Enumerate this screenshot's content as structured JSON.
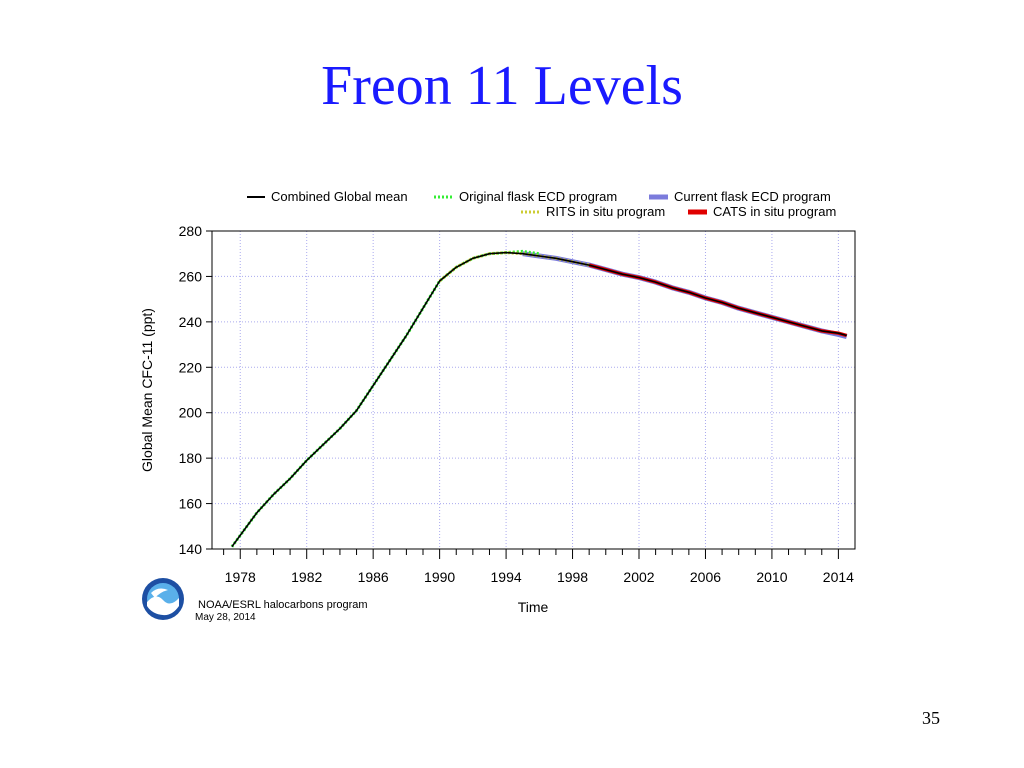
{
  "slide": {
    "title": "Freon 11 Levels",
    "page_number": "35"
  },
  "credits": {
    "logo_text": "NOAA",
    "program": "NOAA/ESRL halocarbons program",
    "date": "May 28, 2014"
  },
  "colors": {
    "title": "#1a1aff",
    "combined": "#000000",
    "original_flask": "#33ee33",
    "current_flask": "#7b7bdc",
    "rits": "#cccc33",
    "cats": "#e00000",
    "grid": "#aaaaee"
  },
  "chart_data": {
    "type": "line",
    "title": "",
    "xlabel": "Time",
    "ylabel": "Global Mean CFC-11  (ppt)",
    "xlim": [
      1976.3,
      2015
    ],
    "ylim": [
      140,
      280
    ],
    "x_ticks": [
      1978,
      1982,
      1986,
      1990,
      1994,
      1998,
      2002,
      2006,
      2010,
      2014
    ],
    "y_ticks": [
      140,
      160,
      180,
      200,
      220,
      240,
      260,
      280
    ],
    "grid": true,
    "legend_position": "top",
    "series": [
      {
        "name": "Combined Global mean",
        "style": "solid-thin",
        "x": [
          1977.5,
          1978,
          1979,
          1980,
          1981,
          1982,
          1983,
          1984,
          1985,
          1986,
          1987,
          1988,
          1989,
          1990,
          1991,
          1992,
          1993,
          1994,
          1995,
          1996,
          1997,
          1998,
          1999,
          2000,
          2001,
          2002,
          2003,
          2004,
          2005,
          2006,
          2007,
          2008,
          2009,
          2010,
          2011,
          2012,
          2013,
          2014,
          2014.5
        ],
        "y": [
          141,
          146,
          156,
          164,
          171,
          179,
          186,
          193,
          201,
          212,
          223,
          234,
          246,
          258,
          264,
          268,
          270,
          270.5,
          270,
          269,
          268,
          266.5,
          265,
          263,
          261,
          259.5,
          257.5,
          255,
          253,
          250.5,
          248.5,
          246,
          244,
          242,
          240,
          238,
          236,
          235,
          234
        ]
      },
      {
        "name": "Original flask ECD program",
        "style": "dotted",
        "x": [
          1977.5,
          1978,
          1979,
          1980,
          1981,
          1982,
          1983,
          1984,
          1985,
          1986,
          1987,
          1988,
          1989,
          1990,
          1991,
          1992,
          1993,
          1994,
          1995,
          1996
        ],
        "y": [
          141,
          146,
          156,
          164,
          171,
          179,
          186,
          193,
          201,
          212,
          223,
          234,
          246,
          258,
          264,
          268,
          270,
          270.5,
          271,
          270
        ]
      },
      {
        "name": "RITS in situ program",
        "style": "dotted",
        "x": [
          1990,
          1991,
          1992,
          1993,
          1994,
          1995,
          1996,
          1997,
          1998,
          1999
        ],
        "y": [
          258,
          264,
          268,
          270,
          270.5,
          270,
          269,
          268,
          266.5,
          265
        ]
      },
      {
        "name": "Current flask ECD program",
        "style": "thick",
        "x": [
          1995,
          1996,
          1997,
          1998,
          1999,
          2000,
          2001,
          2002,
          2003,
          2004,
          2005,
          2006,
          2007,
          2008,
          2009,
          2010,
          2011,
          2012,
          2013,
          2014,
          2014.5
        ],
        "y": [
          270,
          269,
          268,
          266.5,
          265,
          263,
          261,
          259.5,
          257.5,
          255,
          253,
          250.5,
          248.5,
          246,
          244,
          242,
          240,
          238,
          236,
          234.5,
          233.5
        ]
      },
      {
        "name": "CATS in situ program",
        "style": "thick",
        "x": [
          1999,
          2000,
          2001,
          2002,
          2003,
          2004,
          2005,
          2006,
          2007,
          2008,
          2009,
          2010,
          2011,
          2012,
          2013,
          2014,
          2014.5
        ],
        "y": [
          265,
          263,
          261,
          259.5,
          257.5,
          255,
          253,
          250.5,
          248.5,
          246,
          244,
          242,
          240,
          238,
          236,
          235,
          234
        ]
      }
    ]
  }
}
